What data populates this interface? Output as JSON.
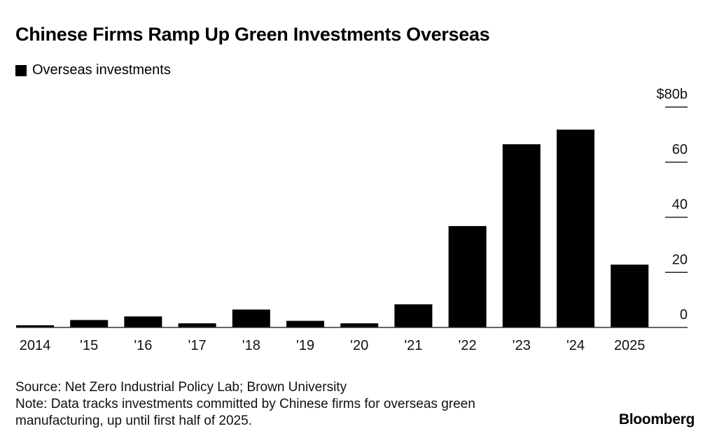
{
  "chart_data": {
    "type": "bar",
    "title": "Chinese Firms Ramp Up Green Investments Overseas",
    "legend": [
      {
        "name": "Overseas investments",
        "color": "#000000"
      }
    ],
    "legend_position": "top-left",
    "categories": [
      "2014",
      "'15",
      "'16",
      "'17",
      "'18",
      "'19",
      "'20",
      "'21",
      "'22",
      "'23",
      "'24",
      "2025"
    ],
    "series": [
      {
        "name": "Overseas investments",
        "values": [
          0.8,
          2.7,
          4.0,
          1.5,
          6.5,
          2.4,
          1.5,
          8.4,
          36.8,
          66.5,
          71.8,
          22.8
        ]
      }
    ],
    "xlabel": "",
    "ylabel": "",
    "ylim": [
      0,
      80
    ],
    "yticks": [
      0,
      20,
      40,
      60,
      80
    ],
    "ytick_labels": [
      "0",
      "20",
      "40",
      "60",
      "$80b"
    ],
    "y_axis_side": "right",
    "grid": false,
    "bar_color": "#000000"
  },
  "footer": {
    "source": "Source: Net Zero Industrial Policy Lab; Brown University",
    "note_line1": "Note: Data tracks investments committed by Chinese firms for overseas green",
    "note_line2": "manufacturing, up until first half of 2025.",
    "brand": "Bloomberg"
  }
}
